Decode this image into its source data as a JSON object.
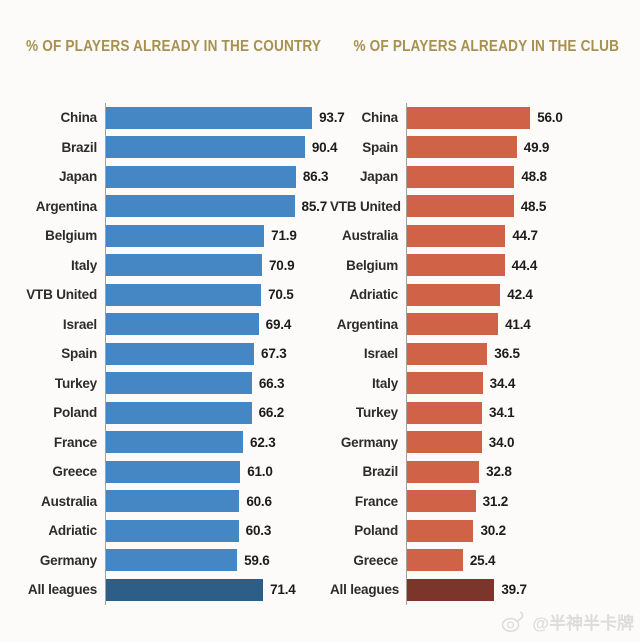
{
  "watermark": {
    "text": "@半神半卡牌",
    "icon": "weibo-eye-icon",
    "color": "#dcdcdc"
  },
  "chart_data": [
    {
      "type": "bar",
      "orientation": "horizontal",
      "title": "% OF PLAYERS ALREADY IN THE COUNTRY",
      "title_color": "#a79150",
      "bar_color": "#4587c4",
      "highlight_bar_color": "#2d5e87",
      "highlight_category": "All leagues",
      "xlim": [
        0,
        100
      ],
      "grid": false,
      "legend": false,
      "categories": [
        "China",
        "Brazil",
        "Japan",
        "Argentina",
        "Belgium",
        "Italy",
        "VTB United",
        "Israel",
        "Spain",
        "Turkey",
        "Poland",
        "France",
        "Greece",
        "Australia",
        "Adriatic",
        "Germany",
        "All leagues"
      ],
      "values": [
        93.7,
        90.4,
        86.3,
        85.7,
        71.9,
        70.9,
        70.5,
        69.4,
        67.3,
        66.3,
        66.2,
        62.3,
        61.0,
        60.6,
        60.3,
        59.6,
        71.4
      ]
    },
    {
      "type": "bar",
      "orientation": "horizontal",
      "title": "% OF PLAYERS ALREADY IN THE CLUB",
      "title_color": "#a79150",
      "bar_color": "#d06247",
      "highlight_bar_color": "#7c352b",
      "highlight_category": "All leagues",
      "xlim": [
        0,
        100
      ],
      "grid": false,
      "legend": false,
      "categories": [
        "China",
        "Spain",
        "Japan",
        "VTB United",
        "Australia",
        "Belgium",
        "Adriatic",
        "Argentina",
        "Israel",
        "Italy",
        "Turkey",
        "Germany",
        "Brazil",
        "France",
        "Poland",
        "Greece",
        "All leagues"
      ],
      "values": [
        56.0,
        49.9,
        48.8,
        48.5,
        44.7,
        44.4,
        42.4,
        41.4,
        36.5,
        34.4,
        34.1,
        34.0,
        32.8,
        31.2,
        30.2,
        25.4,
        39.7
      ]
    }
  ]
}
